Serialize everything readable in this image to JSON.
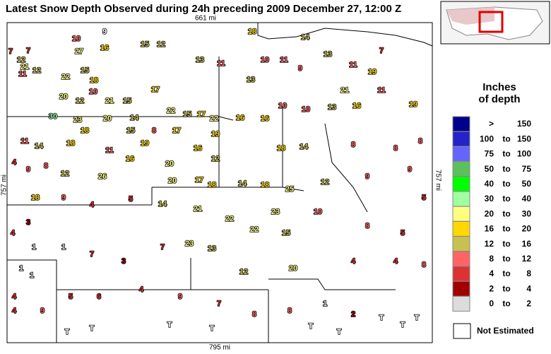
{
  "title": "Latest Snow Depth Observed during 24h preceding 2009 December 27, 12:00 Z",
  "map": {
    "top_label": "661 mi",
    "bottom_label": "795 mi",
    "left_label": "757 mi",
    "right_label": "757 mi",
    "stations": [
      "9",
      10,
      16,
      27,
      7,
      7,
      12,
      21,
      11,
      12,
      15,
      22,
      18,
      10,
      20,
      12,
      21,
      15,
      17,
      15,
      12,
      13,
      11,
      13,
      10,
      11,
      9,
      13,
      11,
      19,
      7,
      18,
      14,
      21,
      11,
      19,
      16,
      13,
      22,
      15,
      17,
      22,
      30,
      23,
      20,
      14,
      8,
      11,
      14,
      18,
      18,
      15,
      19,
      17,
      19,
      16,
      16,
      10,
      10,
      18,
      14,
      8,
      8,
      8,
      4,
      9,
      8,
      12,
      11,
      26,
      16,
      20,
      16,
      12,
      20,
      17,
      18,
      14,
      18,
      25,
      12,
      9,
      9,
      5,
      18,
      9,
      4,
      5,
      14,
      21,
      22,
      22,
      23,
      15,
      10,
      8,
      5,
      4,
      3,
      1,
      1,
      7,
      3,
      7,
      23,
      13,
      12,
      20,
      4,
      4,
      8,
      1,
      1,
      4,
      9,
      5,
      6,
      4,
      9,
      7,
      8,
      8,
      1,
      2,
      "T",
      "T",
      "T",
      "T",
      "T",
      "T",
      "T",
      "T",
      "T",
      4
    ]
  },
  "legend": {
    "title_line1": "Inches",
    "title_line2": "of depth",
    "rows": [
      {
        "from": ">",
        "to": 150,
        "color": "#00008b"
      },
      {
        "from": 100,
        "word": "to",
        "to": 150,
        "color": "#2323c8"
      },
      {
        "from": 75,
        "word": "to",
        "to": 100,
        "color": "#6464ff"
      },
      {
        "from": 50,
        "word": "to",
        "to": 75,
        "color": "#5cc05c"
      },
      {
        "from": 40,
        "word": "to",
        "to": 50,
        "color": "#00ff00"
      },
      {
        "from": 30,
        "word": "to",
        "to": 40,
        "color": "#a0ffa0"
      },
      {
        "from": 20,
        "word": "to",
        "to": 30,
        "color": "#ffff80"
      },
      {
        "from": 16,
        "word": "to",
        "to": 20,
        "color": "#ffd700"
      },
      {
        "from": 12,
        "word": "to",
        "to": 16,
        "color": "#c8c050"
      },
      {
        "from": 8,
        "word": "to",
        "to": 12,
        "color": "#ff6464"
      },
      {
        "from": 4,
        "word": "to",
        "to": 8,
        "color": "#dc3232"
      },
      {
        "from": 2,
        "word": "to",
        "to": 4,
        "color": "#a00000"
      },
      {
        "from": 0,
        "word": "to",
        "to": 2,
        "color": "#dcdcdc"
      }
    ],
    "not_estimated": "Not Estimated"
  }
}
